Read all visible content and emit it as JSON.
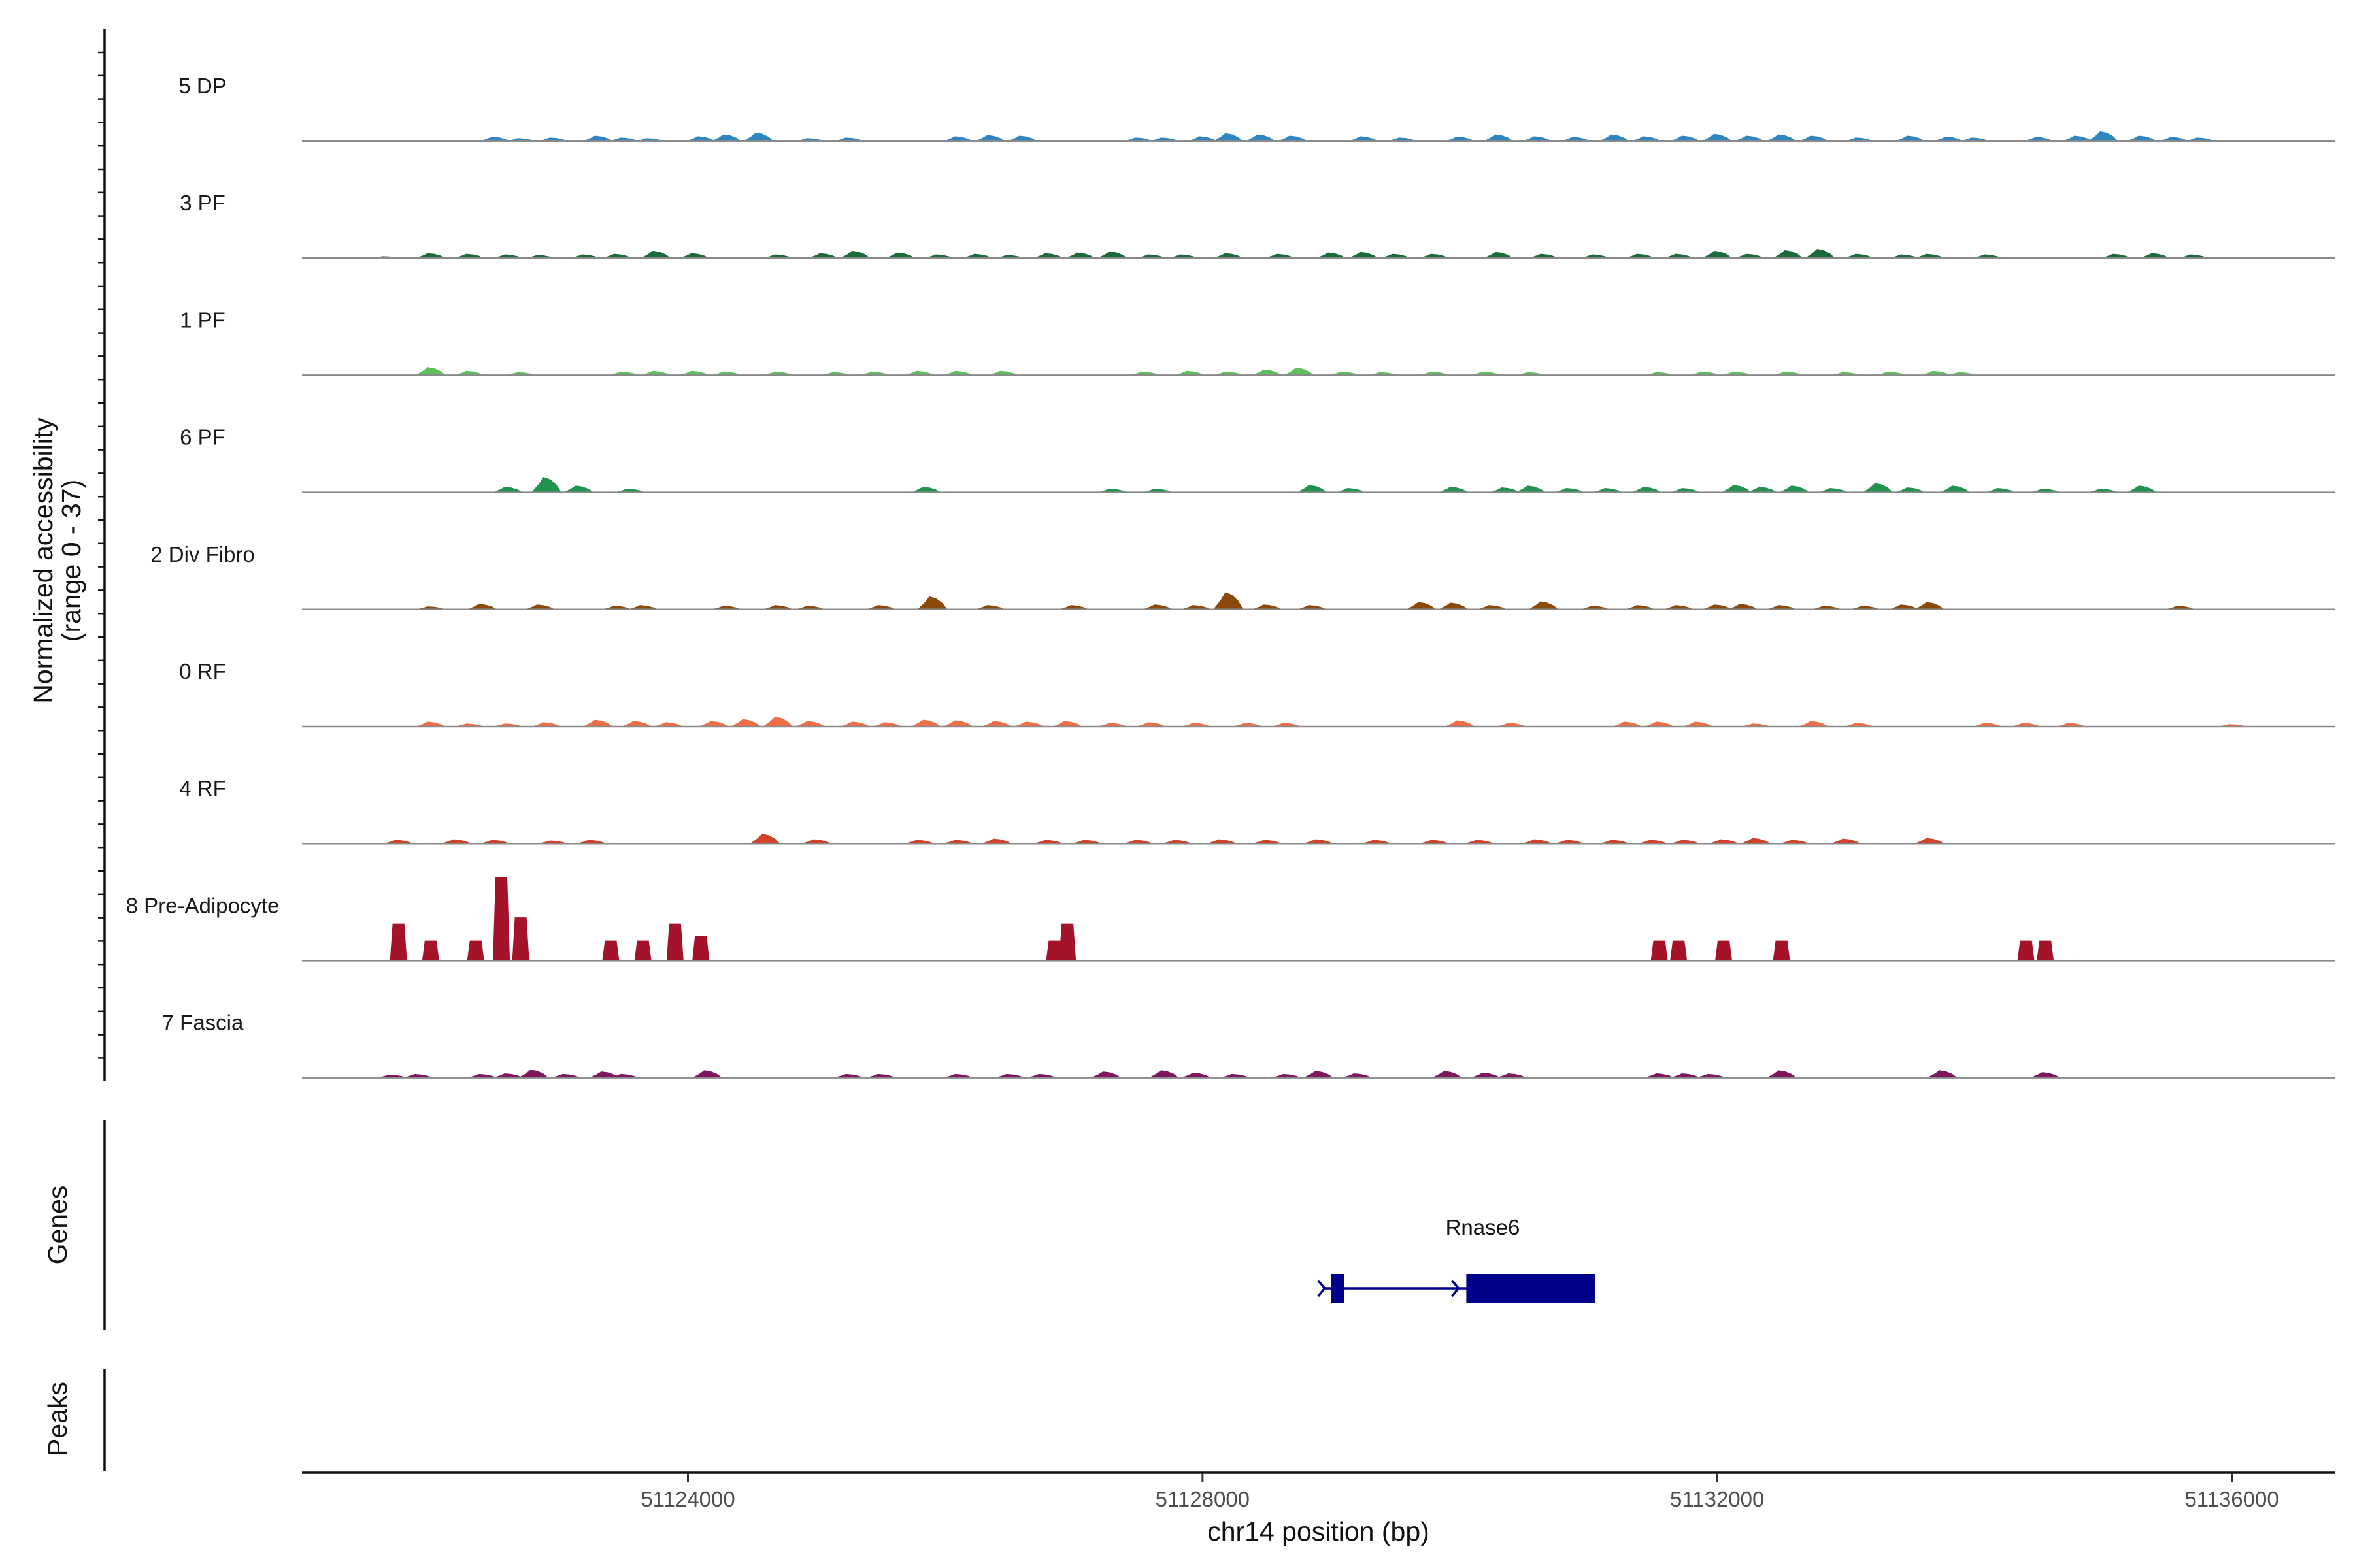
{
  "chart_data": {
    "type": "area",
    "title": "",
    "ylabel_line1": "Normalized accessibility",
    "ylabel_line2": "(range 0 - 37)",
    "y_range": [
      0,
      37
    ],
    "xlabel": "chr14 position (bp)",
    "xlim": [
      51121000,
      51136800
    ],
    "x_ticks": [
      51124000,
      51128000,
      51132000,
      51136000
    ],
    "x_tick_labels": [
      "51124000",
      "51128000",
      "51132000",
      "51136000"
    ],
    "tracks": [
      {
        "name": "5 DP",
        "color": "#2E86C1",
        "peaks": [
          [
            51122500,
            1.5
          ],
          [
            51122700,
            1
          ],
          [
            51122950,
            1.2
          ],
          [
            51123300,
            1.8
          ],
          [
            51123500,
            1.2
          ],
          [
            51123700,
            1
          ],
          [
            51124100,
            1.6
          ],
          [
            51124300,
            2.2
          ],
          [
            51124550,
            2.8
          ],
          [
            51124950,
            1
          ],
          [
            51125250,
            1.2
          ],
          [
            51126100,
            1.6
          ],
          [
            51126350,
            2
          ],
          [
            51126600,
            1.8
          ],
          [
            51127500,
            1.2
          ],
          [
            51127700,
            1.2
          ],
          [
            51128000,
            1.6
          ],
          [
            51128200,
            2.6
          ],
          [
            51128450,
            2.2
          ],
          [
            51128700,
            1.8
          ],
          [
            51129250,
            1.6
          ],
          [
            51129550,
            1.2
          ],
          [
            51130000,
            1.5
          ],
          [
            51130300,
            2.2
          ],
          [
            51130600,
            1.6
          ],
          [
            51130900,
            1.4
          ],
          [
            51131200,
            2.2
          ],
          [
            51131450,
            1.6
          ],
          [
            51131750,
            1.8
          ],
          [
            51132000,
            2.4
          ],
          [
            51132250,
            1.8
          ],
          [
            51132500,
            2.2
          ],
          [
            51132750,
            1.8
          ],
          [
            51133100,
            1.2
          ],
          [
            51133500,
            1.8
          ],
          [
            51133800,
            1.5
          ],
          [
            51134000,
            1.2
          ],
          [
            51134500,
            1.4
          ],
          [
            51134800,
            1.8
          ],
          [
            51135000,
            3.2
          ],
          [
            51135300,
            1.8
          ],
          [
            51135550,
            1.4
          ],
          [
            51135750,
            1.2
          ]
        ]
      },
      {
        "name": "3 PF",
        "color": "#1B6B3A",
        "peaks": [
          [
            51121650,
            0.6
          ],
          [
            51122000,
            1.6
          ],
          [
            51122300,
            1.4
          ],
          [
            51122600,
            1.2
          ],
          [
            51122850,
            1
          ],
          [
            51123200,
            1.2
          ],
          [
            51123450,
            1.4
          ],
          [
            51123750,
            2.4
          ],
          [
            51124050,
            1.6
          ],
          [
            51124700,
            1.2
          ],
          [
            51125050,
            1.6
          ],
          [
            51125300,
            2.4
          ],
          [
            51125650,
            1.8
          ],
          [
            51125950,
            1.2
          ],
          [
            51126250,
            1.4
          ],
          [
            51126500,
            1
          ],
          [
            51126800,
            1.6
          ],
          [
            51127050,
            1.8
          ],
          [
            51127300,
            2.2
          ],
          [
            51127600,
            1.2
          ],
          [
            51127850,
            1.2
          ],
          [
            51128200,
            1.6
          ],
          [
            51128600,
            1.4
          ],
          [
            51129000,
            1.8
          ],
          [
            51129250,
            2
          ],
          [
            51129500,
            1.4
          ],
          [
            51129800,
            1.4
          ],
          [
            51130300,
            2
          ],
          [
            51130650,
            1.4
          ],
          [
            51131050,
            1.2
          ],
          [
            51131400,
            1.4
          ],
          [
            51131700,
            1.4
          ],
          [
            51132000,
            2.4
          ],
          [
            51132250,
            1.4
          ],
          [
            51132550,
            2.6
          ],
          [
            51132800,
            3
          ],
          [
            51133100,
            1.4
          ],
          [
            51133450,
            1.2
          ],
          [
            51133650,
            1.4
          ],
          [
            51134100,
            1.2
          ],
          [
            51135100,
            1.4
          ],
          [
            51135400,
            1.6
          ],
          [
            51135700,
            1.2
          ]
        ]
      },
      {
        "name": "1 PF",
        "color": "#5CBF5A",
        "peaks": [
          [
            51122000,
            2.6
          ],
          [
            51122300,
            1.4
          ],
          [
            51122700,
            1
          ],
          [
            51123500,
            1.2
          ],
          [
            51123750,
            1.4
          ],
          [
            51124050,
            1.4
          ],
          [
            51124300,
            1.2
          ],
          [
            51124700,
            1.2
          ],
          [
            51125150,
            1
          ],
          [
            51125450,
            1.2
          ],
          [
            51125800,
            1.4
          ],
          [
            51126100,
            1.4
          ],
          [
            51126450,
            1.4
          ],
          [
            51127550,
            1.2
          ],
          [
            51127900,
            1.4
          ],
          [
            51128200,
            1.2
          ],
          [
            51128500,
            1.8
          ],
          [
            51128750,
            2.4
          ],
          [
            51129100,
            1.2
          ],
          [
            51129400,
            1
          ],
          [
            51129800,
            1.2
          ],
          [
            51130200,
            1.2
          ],
          [
            51130550,
            1
          ],
          [
            51131550,
            1
          ],
          [
            51131900,
            1.2
          ],
          [
            51132150,
            1.2
          ],
          [
            51132550,
            1.2
          ],
          [
            51133000,
            1
          ],
          [
            51133350,
            1.2
          ],
          [
            51133700,
            1.4
          ],
          [
            51133900,
            1
          ]
        ]
      },
      {
        "name": "6 PF",
        "color": "#22924F",
        "peaks": [
          [
            51122600,
            1.8
          ],
          [
            51122900,
            5
          ],
          [
            51123150,
            2.2
          ],
          [
            51123550,
            1.2
          ],
          [
            51125850,
            1.8
          ],
          [
            51127300,
            1.2
          ],
          [
            51127650,
            1.2
          ],
          [
            51128850,
            2.4
          ],
          [
            51129150,
            1.4
          ],
          [
            51129950,
            1.8
          ],
          [
            51130350,
            1.6
          ],
          [
            51130550,
            2.2
          ],
          [
            51130850,
            1.4
          ],
          [
            51131150,
            1.4
          ],
          [
            51131450,
            1.8
          ],
          [
            51131750,
            1.4
          ],
          [
            51132150,
            2.4
          ],
          [
            51132350,
            1.8
          ],
          [
            51132600,
            2.2
          ],
          [
            51132900,
            1.4
          ],
          [
            51133250,
            3
          ],
          [
            51133500,
            1.6
          ],
          [
            51133850,
            2.2
          ],
          [
            51134200,
            1.4
          ],
          [
            51134550,
            1.2
          ],
          [
            51135000,
            1.2
          ],
          [
            51135300,
            2.2
          ]
        ]
      },
      {
        "name": "2 Div Fibro",
        "color": "#8B4A0C",
        "peaks": [
          [
            51122000,
            1
          ],
          [
            51122400,
            1.8
          ],
          [
            51122850,
            1.6
          ],
          [
            51123450,
            1.2
          ],
          [
            51123650,
            1.4
          ],
          [
            51124300,
            1.2
          ],
          [
            51124700,
            1.4
          ],
          [
            51124950,
            1.2
          ],
          [
            51125500,
            1.4
          ],
          [
            51125900,
            4.2
          ],
          [
            51126350,
            1.4
          ],
          [
            51127000,
            1.4
          ],
          [
            51127650,
            1.6
          ],
          [
            51127950,
            1.4
          ],
          [
            51128200,
            5.6
          ],
          [
            51128500,
            1.6
          ],
          [
            51128850,
            1.4
          ],
          [
            51129700,
            2.4
          ],
          [
            51129950,
            2.2
          ],
          [
            51130250,
            1.4
          ],
          [
            51130650,
            2.6
          ],
          [
            51131050,
            1.2
          ],
          [
            51131400,
            1.4
          ],
          [
            51131700,
            1.4
          ],
          [
            51132000,
            1.6
          ],
          [
            51132200,
            1.8
          ],
          [
            51132500,
            1.4
          ],
          [
            51132850,
            1.2
          ],
          [
            51133150,
            1.2
          ],
          [
            51133450,
            1.6
          ],
          [
            51133650,
            2.4
          ],
          [
            51135600,
            1.2
          ]
        ]
      },
      {
        "name": "0 RF",
        "color": "#EE6E45",
        "peaks": [
          [
            51122000,
            1.6
          ],
          [
            51122300,
            1
          ],
          [
            51122600,
            1
          ],
          [
            51122900,
            1.4
          ],
          [
            51123300,
            2.2
          ],
          [
            51123600,
            1.8
          ],
          [
            51123850,
            1.4
          ],
          [
            51124200,
            1.8
          ],
          [
            51124450,
            2.4
          ],
          [
            51124700,
            3.2
          ],
          [
            51124950,
            1.8
          ],
          [
            51125300,
            1.6
          ],
          [
            51125550,
            1.4
          ],
          [
            51125850,
            2.2
          ],
          [
            51126100,
            2
          ],
          [
            51126400,
            1.8
          ],
          [
            51126650,
            1.6
          ],
          [
            51126950,
            1.8
          ],
          [
            51127300,
            1.2
          ],
          [
            51127600,
            1.4
          ],
          [
            51127950,
            1.2
          ],
          [
            51128350,
            1.2
          ],
          [
            51128650,
            1.2
          ],
          [
            51130000,
            2
          ],
          [
            51130400,
            1.2
          ],
          [
            51131300,
            1.6
          ],
          [
            51131550,
            1.6
          ],
          [
            51131850,
            1.6
          ],
          [
            51132300,
            1
          ],
          [
            51132750,
            1.8
          ],
          [
            51133100,
            1.2
          ],
          [
            51134100,
            1.2
          ],
          [
            51134400,
            1.2
          ],
          [
            51134750,
            1.2
          ],
          [
            51136000,
            0.8
          ]
        ]
      },
      {
        "name": "4 RF",
        "color": "#D0422A",
        "peaks": [
          [
            51121750,
            1.2
          ],
          [
            51122200,
            1.4
          ],
          [
            51122500,
            1.2
          ],
          [
            51122950,
            1
          ],
          [
            51123250,
            1.2
          ],
          [
            51124600,
            3.2
          ],
          [
            51125000,
            1.4
          ],
          [
            51125800,
            1.2
          ],
          [
            51126100,
            1.2
          ],
          [
            51126400,
            1.6
          ],
          [
            51126800,
            1.2
          ],
          [
            51127100,
            1.2
          ],
          [
            51127500,
            1.2
          ],
          [
            51127800,
            1.2
          ],
          [
            51128150,
            1.4
          ],
          [
            51128500,
            1.2
          ],
          [
            51128900,
            1.4
          ],
          [
            51129350,
            1.2
          ],
          [
            51129800,
            1.2
          ],
          [
            51130150,
            1.2
          ],
          [
            51130600,
            1.4
          ],
          [
            51130850,
            1.2
          ],
          [
            51131200,
            1.2
          ],
          [
            51131500,
            1.2
          ],
          [
            51131750,
            1.2
          ],
          [
            51132050,
            1.4
          ],
          [
            51132300,
            1.8
          ],
          [
            51132600,
            1.2
          ],
          [
            51133000,
            1.6
          ],
          [
            51133650,
            1.8
          ]
        ]
      },
      {
        "name": "8 Pre-Adipocyte",
        "color": "#A5132A",
        "peaks": [
          [
            51121750,
            12
          ],
          [
            51122000,
            6.5
          ],
          [
            51122350,
            6.5
          ],
          [
            51122550,
            27
          ],
          [
            51122700,
            14
          ],
          [
            51123400,
            6.5
          ],
          [
            51123650,
            6.5
          ],
          [
            51123900,
            12
          ],
          [
            51124100,
            8
          ],
          [
            51126850,
            6.5
          ],
          [
            51126950,
            12
          ],
          [
            51131550,
            6.5
          ],
          [
            51131700,
            6.5
          ],
          [
            51132050,
            6.5
          ],
          [
            51132500,
            6.5
          ],
          [
            51134400,
            6.5
          ],
          [
            51134550,
            6.5
          ]
        ]
      },
      {
        "name": "7 Fascia",
        "color": "#7E1660",
        "peaks": [
          [
            51121700,
            1
          ],
          [
            51121900,
            1.2
          ],
          [
            51122400,
            1.2
          ],
          [
            51122600,
            1.4
          ],
          [
            51122800,
            2.6
          ],
          [
            51123050,
            1.2
          ],
          [
            51123350,
            2
          ],
          [
            51123500,
            1.2
          ],
          [
            51124150,
            2.4
          ],
          [
            51125250,
            1.2
          ],
          [
            51125500,
            1.2
          ],
          [
            51126100,
            1.2
          ],
          [
            51126500,
            1.2
          ],
          [
            51126750,
            1.2
          ],
          [
            51127250,
            2
          ],
          [
            51127700,
            2.4
          ],
          [
            51127950,
            1.6
          ],
          [
            51128250,
            1.2
          ],
          [
            51128650,
            1.2
          ],
          [
            51128900,
            2.2
          ],
          [
            51129200,
            1.4
          ],
          [
            51129900,
            2.2
          ],
          [
            51130200,
            1.6
          ],
          [
            51130400,
            1.4
          ],
          [
            51131550,
            1.4
          ],
          [
            51131750,
            1.4
          ],
          [
            51131950,
            1.2
          ],
          [
            51132500,
            2.4
          ],
          [
            51133750,
            2.4
          ],
          [
            51134550,
            1.8
          ]
        ]
      }
    ],
    "genes": [
      {
        "name": "Rnase6",
        "start": 51129000,
        "end": 51131050,
        "strand": "+",
        "exons": [
          [
            51129000,
            51129100
          ],
          [
            51130050,
            51131050
          ]
        ],
        "color": "#00008B"
      }
    ],
    "side_panels": [
      "Genes",
      "Peaks"
    ]
  }
}
